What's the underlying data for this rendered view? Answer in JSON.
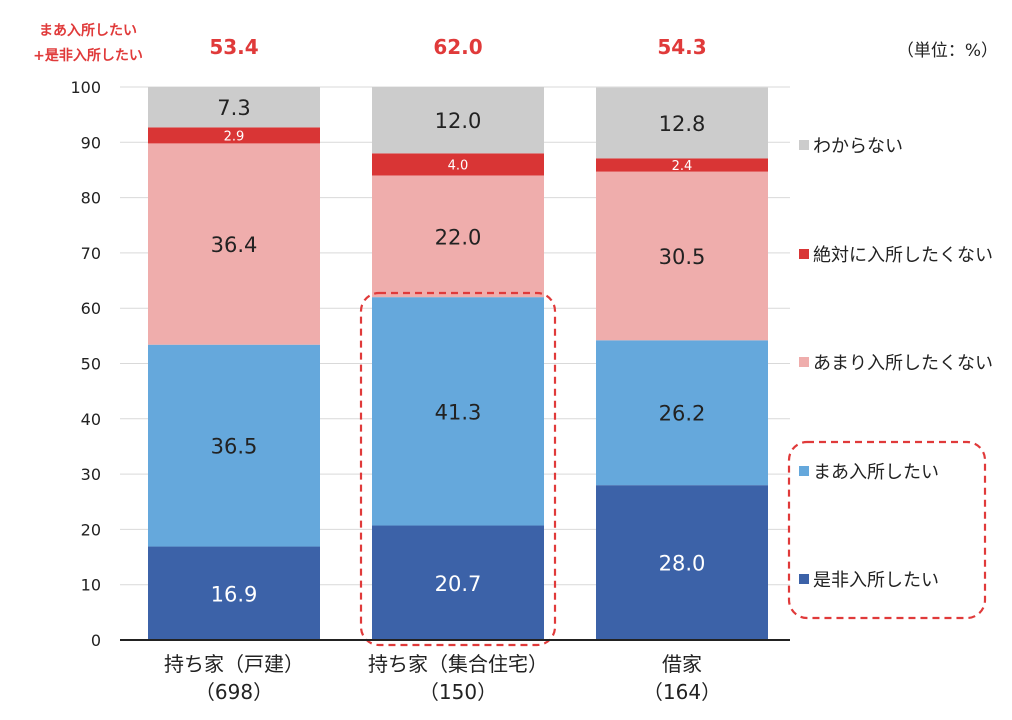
{
  "chart_data": {
    "type": "bar",
    "stacked": true,
    "title": "",
    "top_label_lines": [
      "まあ入所したい",
      "+是非入所したい"
    ],
    "top_values": [
      "53.4",
      "62.0",
      "54.3"
    ],
    "unit_label": "（単位：%）",
    "categories": [
      {
        "name": "持ち家（戸建）",
        "n": "（698）"
      },
      {
        "name": "持ち家（集合住宅）",
        "n": "（150）"
      },
      {
        "name": "借家",
        "n": "（164）"
      }
    ],
    "ylim": [
      0,
      100
    ],
    "yticks": [
      "0",
      "10",
      "20",
      "30",
      "40",
      "50",
      "60",
      "70",
      "80",
      "90",
      "100"
    ],
    "grid": true,
    "legend_position": "right",
    "series": [
      {
        "name": "是非入所したい",
        "color": "#3c62a8",
        "label_color": "#ffffff",
        "values": [
          16.9,
          20.7,
          28.0
        ],
        "labels": [
          "16.9",
          "20.7",
          "28.0"
        ]
      },
      {
        "name": "まあ入所したい",
        "color": "#65a8dc",
        "label_color": "#222222",
        "values": [
          36.5,
          41.3,
          26.2
        ],
        "labels": [
          "36.5",
          "41.3",
          "26.2"
        ]
      },
      {
        "name": "あまり入所したくない",
        "color": "#efadac",
        "label_color": "#222222",
        "values": [
          36.4,
          22.0,
          30.5
        ],
        "labels": [
          "36.4",
          "22.0",
          "30.5"
        ]
      },
      {
        "name": "絶対に入所したくない",
        "color": "#d93535",
        "label_color": "#ffffff",
        "values": [
          2.9,
          4.0,
          2.4
        ],
        "labels": [
          "2.9",
          "4.0",
          "2.4"
        ]
      },
      {
        "name": "わからない",
        "color": "#cccccc",
        "label_color": "#222222",
        "values": [
          7.3,
          12.0,
          12.8
        ],
        "labels": [
          "7.3",
          "12.0",
          "12.8"
        ]
      }
    ],
    "legend_order": [
      "わからない",
      "絶対に入所したくない",
      "あまり入所したくない",
      "まあ入所したい",
      "是非入所したい"
    ],
    "highlight_bar": "持ち家（集合住宅）",
    "highlight_legend": [
      "まあ入所したい",
      "是非入所したい"
    ],
    "highlight_color": "#e03a3a"
  }
}
